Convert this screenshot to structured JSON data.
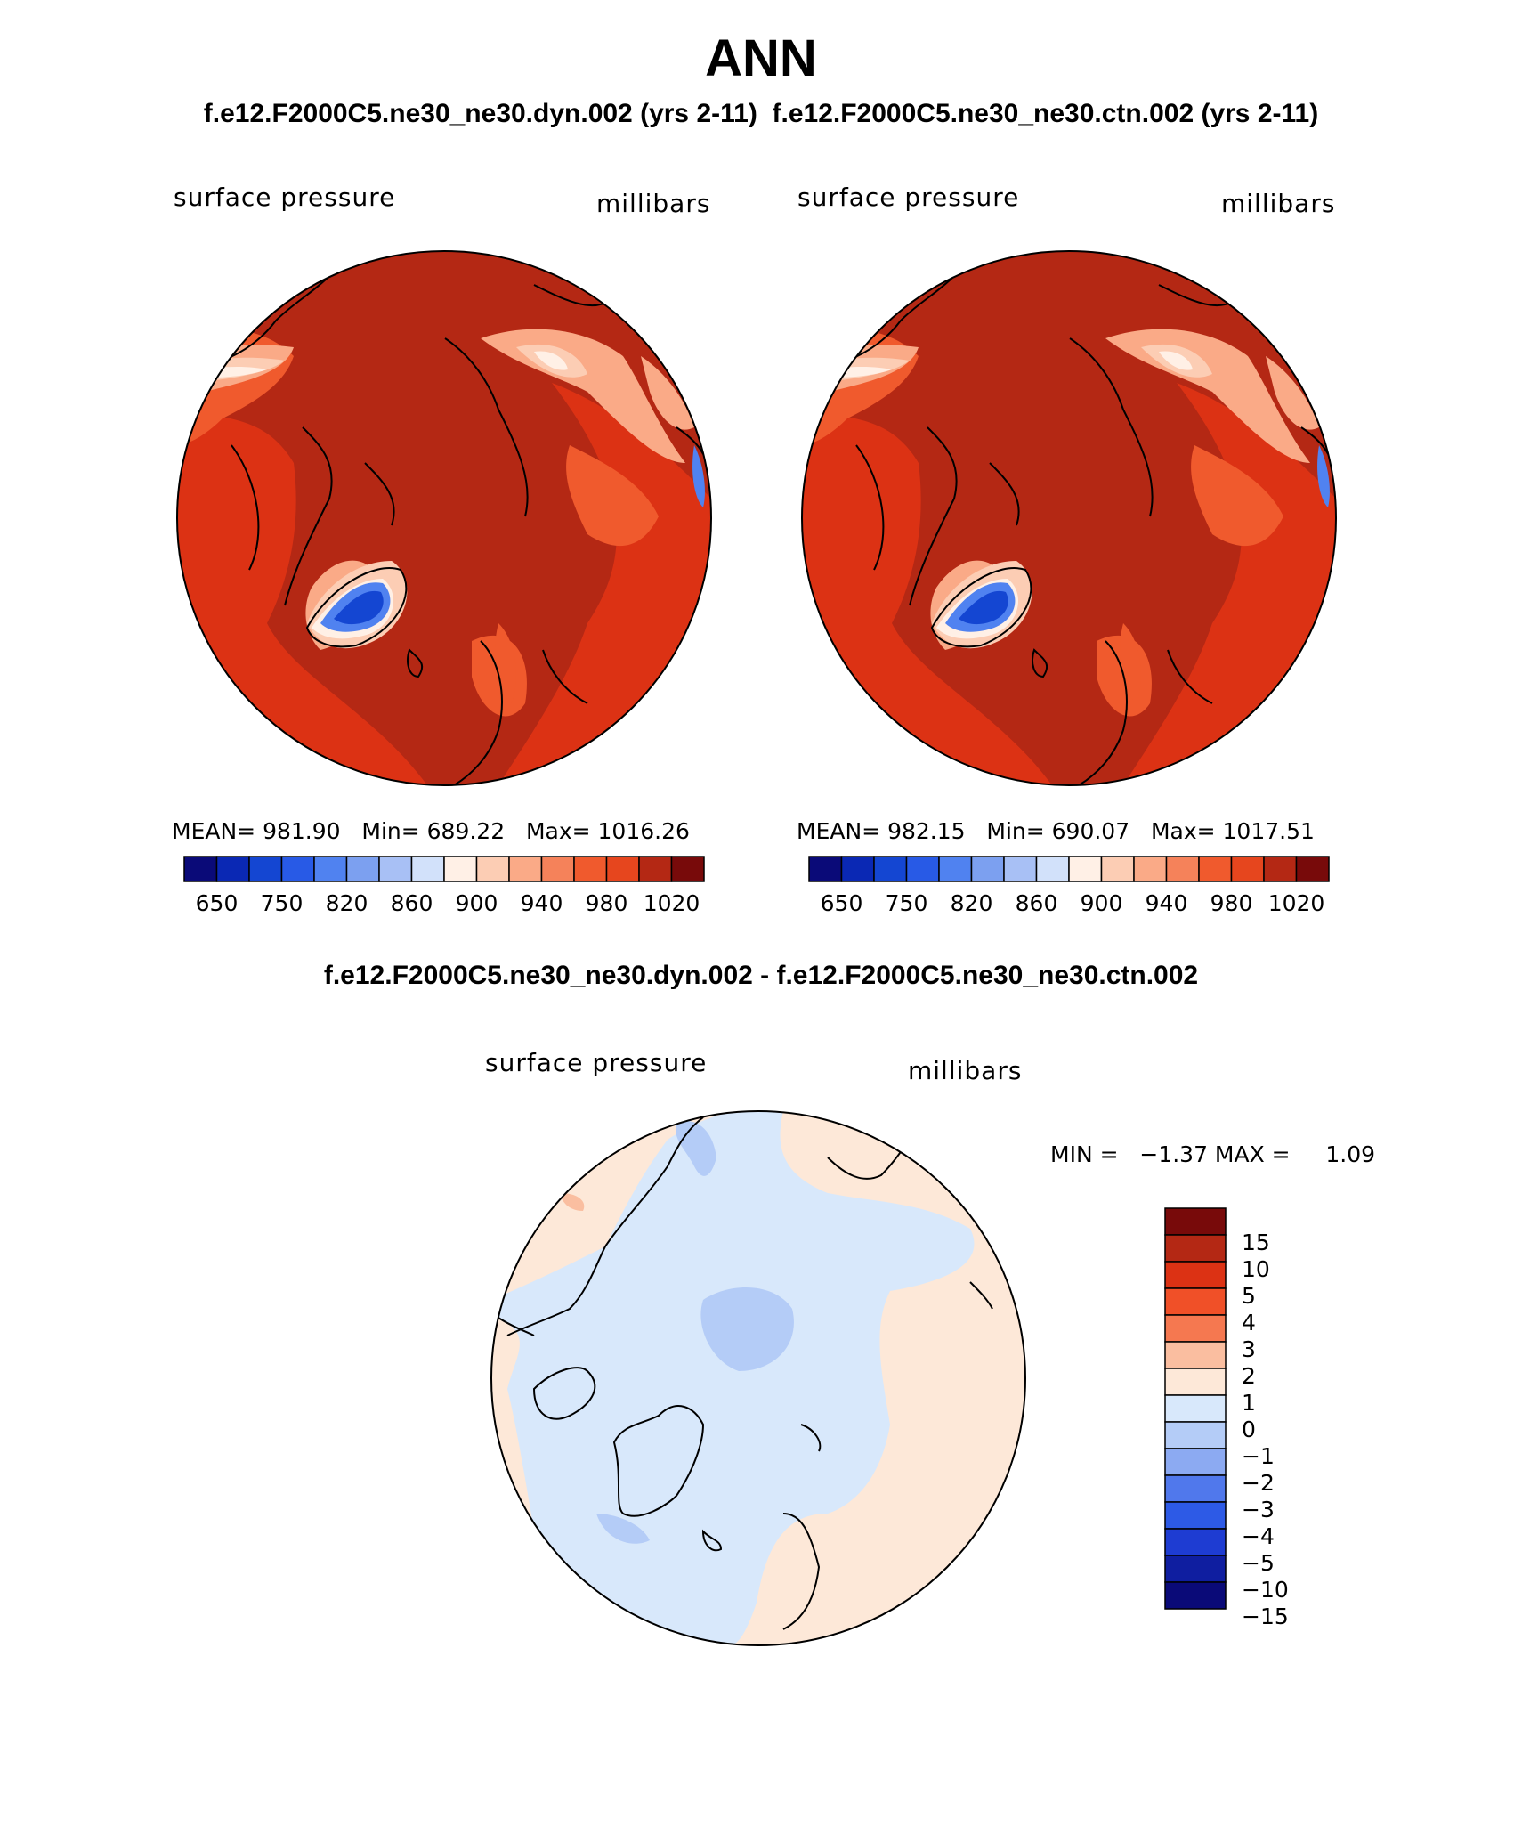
{
  "header": {
    "title": "ANN",
    "subtitle": "f.e12.F2000C5.ne30_ne30.dyn.002 (yrs 2-11)  f.e12.F2000C5.ne30_ne30.ctn.002 (yrs 2-11)",
    "diff_title": "f.e12.F2000C5.ne30_ne30.dyn.002 - f.e12.F2000C5.ne30_ne30.ctn.002"
  },
  "panels": [
    {
      "id": "dyn",
      "variable": "surface pressure",
      "units": "millibars",
      "stats": "MEAN= 981.90   Min= 689.22   Max= 1016.26"
    },
    {
      "id": "ctn",
      "variable": "surface pressure",
      "units": "millibars",
      "stats": "MEAN= 982.15   Min= 690.07   Max= 1017.51"
    },
    {
      "id": "diff",
      "variable": "surface pressure",
      "units": "millibars",
      "stats": "MIN =   −1.37 MAX =     1.09"
    }
  ],
  "colorbar_abs": {
    "colors": [
      "#0a0a78",
      "#0a28b4",
      "#1446d2",
      "#285ae6",
      "#5082f0",
      "#7ca0f0",
      "#a8c0f5",
      "#d2e1fa",
      "#fff0e6",
      "#fccdb4",
      "#faaa87",
      "#f5825a",
      "#f05a2d",
      "#e6461e",
      "#b42814",
      "#780a0a"
    ],
    "labels": [
      "650",
      "750",
      "820",
      "860",
      "900",
      "940",
      "980",
      "1020"
    ]
  },
  "colorbar_diff": {
    "colors": [
      "#780a0a",
      "#b42814",
      "#dc3214",
      "#f05028",
      "#f57850",
      "#fabea0",
      "#fde8d8",
      "#d8e8fb",
      "#b4ccf7",
      "#8caaf2",
      "#5078ec",
      "#2d5ae6",
      "#1e3cd2",
      "#0f1ea0",
      "#0a0a78"
    ],
    "labels": [
      "15",
      "10",
      "5",
      "4",
      "3",
      "2",
      "1",
      "0",
      "−1",
      "−2",
      "−3",
      "−4",
      "−5",
      "−10",
      "−15"
    ]
  },
  "map_colors": {
    "abs_ocean": "#b42814",
    "abs_mid": "#dc3214",
    "abs_high": "#f05a2d",
    "abs_light": "#faaa87",
    "abs_pale": "#fccdb4",
    "abs_white": "#fff0e6",
    "abs_ice1": "#5082f0",
    "abs_ice2": "#1446d2",
    "diff_pos": "#fde8d8",
    "diff_pos2": "#fabea0",
    "diff_neg": "#d8e8fb",
    "diff_neg2": "#b4ccf7",
    "diff_neg3": "#8caaf2"
  }
}
